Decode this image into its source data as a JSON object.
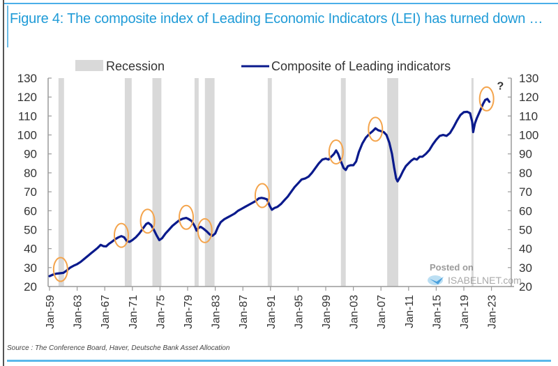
{
  "title": "Figure 4: The composite index of Leading Economic Indicators (LEI) has turned down …",
  "source": "Source : The Conference Board, Haver, Deutsche Bank Asset Allocation",
  "watermark": {
    "line1": "Posted on",
    "line2": "ISABELNET.com"
  },
  "chart_data": {
    "type": "line",
    "title": "Figure 4: The composite index of Leading Economic Indicators (LEI) has turned down …",
    "xlabel": "",
    "ylabel": "",
    "ylim": [
      20,
      130
    ],
    "xlim": [
      1959,
      2025.5
    ],
    "yticks": [
      20,
      30,
      40,
      50,
      60,
      70,
      80,
      90,
      100,
      110,
      120,
      130
    ],
    "xticks": [
      {
        "year": 1959,
        "label": "Jan-59"
      },
      {
        "year": 1963,
        "label": "Jan-63"
      },
      {
        "year": 1967,
        "label": "Jan-67"
      },
      {
        "year": 1971,
        "label": "Jan-71"
      },
      {
        "year": 1975,
        "label": "Jan-75"
      },
      {
        "year": 1979,
        "label": "Jan-79"
      },
      {
        "year": 1983,
        "label": "Jan-83"
      },
      {
        "year": 1987,
        "label": "Jan-87"
      },
      {
        "year": 1991,
        "label": "Jan-91"
      },
      {
        "year": 1995,
        "label": "Jan-95"
      },
      {
        "year": 1999,
        "label": "Jan-99"
      },
      {
        "year": 2003,
        "label": "Jan-03"
      },
      {
        "year": 2007,
        "label": "Jan-07"
      },
      {
        "year": 2011,
        "label": "Jan-11"
      },
      {
        "year": 2015,
        "label": "Jan-15"
      },
      {
        "year": 2019,
        "label": "Jan-19"
      },
      {
        "year": 2023,
        "label": "Jan-23"
      }
    ],
    "grid": false,
    "legend": {
      "position": "top",
      "entries": [
        {
          "name": "Recession",
          "type": "band",
          "color": "#d9d9d9"
        },
        {
          "name": "Composite of Leading indicators",
          "type": "line",
          "color": "#0a1a8c"
        }
      ]
    },
    "recessions": [
      [
        1960.3,
        1961.1
      ],
      [
        1969.9,
        1970.9
      ],
      [
        1973.9,
        1975.2
      ],
      [
        1980.0,
        1980.6
      ],
      [
        1981.5,
        1982.9
      ],
      [
        1990.6,
        1991.2
      ],
      [
        2001.2,
        2001.9
      ],
      [
        2007.9,
        2009.5
      ],
      [
        2020.1,
        2020.4
      ]
    ],
    "series": [
      {
        "name": "Composite of Leading indicators",
        "color": "#0a1a8c",
        "points": [
          [
            1959.0,
            25.5
          ],
          [
            1959.5,
            26.3
          ],
          [
            1960.0,
            26.8
          ],
          [
            1960.5,
            27.0
          ],
          [
            1961.0,
            27.2
          ],
          [
            1961.5,
            28.5
          ],
          [
            1962.0,
            30.0
          ],
          [
            1962.5,
            31.0
          ],
          [
            1963.0,
            31.8
          ],
          [
            1963.5,
            33.0
          ],
          [
            1964.0,
            34.5
          ],
          [
            1964.5,
            36.0
          ],
          [
            1965.0,
            37.5
          ],
          [
            1965.5,
            39.0
          ],
          [
            1966.0,
            40.5
          ],
          [
            1966.4,
            42.0
          ],
          [
            1966.8,
            41.3
          ],
          [
            1967.2,
            41.2
          ],
          [
            1967.6,
            42.5
          ],
          [
            1968.0,
            43.5
          ],
          [
            1968.5,
            45.0
          ],
          [
            1969.0,
            46.0
          ],
          [
            1969.4,
            46.6
          ],
          [
            1969.8,
            46.0
          ],
          [
            1970.2,
            44.0
          ],
          [
            1970.6,
            43.6
          ],
          [
            1971.0,
            44.5
          ],
          [
            1971.5,
            46.0
          ],
          [
            1972.0,
            48.0
          ],
          [
            1972.5,
            50.5
          ],
          [
            1973.0,
            53.0
          ],
          [
            1973.3,
            53.6
          ],
          [
            1973.7,
            52.5
          ],
          [
            1974.1,
            50.0
          ],
          [
            1974.5,
            47.0
          ],
          [
            1974.9,
            44.5
          ],
          [
            1975.3,
            45.5
          ],
          [
            1975.8,
            48.0
          ],
          [
            1976.3,
            50.0
          ],
          [
            1976.8,
            52.0
          ],
          [
            1977.3,
            53.5
          ],
          [
            1977.8,
            55.0
          ],
          [
            1978.3,
            55.8
          ],
          [
            1978.8,
            56.2
          ],
          [
            1979.2,
            55.5
          ],
          [
            1979.6,
            54.5
          ],
          [
            1980.0,
            52.0
          ],
          [
            1980.3,
            49.5
          ],
          [
            1980.6,
            51.0
          ],
          [
            1980.9,
            51.5
          ],
          [
            1981.3,
            50.5
          ],
          [
            1981.8,
            49.0
          ],
          [
            1982.2,
            47.5
          ],
          [
            1982.6,
            46.8
          ],
          [
            1983.0,
            48.0
          ],
          [
            1983.4,
            51.5
          ],
          [
            1983.8,
            54.0
          ],
          [
            1984.3,
            55.5
          ],
          [
            1984.8,
            56.5
          ],
          [
            1985.3,
            57.5
          ],
          [
            1985.8,
            58.5
          ],
          [
            1986.3,
            60.0
          ],
          [
            1986.8,
            61.0
          ],
          [
            1987.3,
            62.0
          ],
          [
            1987.8,
            63.0
          ],
          [
            1988.3,
            64.0
          ],
          [
            1988.8,
            65.0
          ],
          [
            1989.3,
            66.5
          ],
          [
            1989.7,
            66.8
          ],
          [
            1990.1,
            66.5
          ],
          [
            1990.5,
            66.0
          ],
          [
            1990.9,
            62.5
          ],
          [
            1991.2,
            60.5
          ],
          [
            1991.6,
            61.5
          ],
          [
            1992.0,
            62.0
          ],
          [
            1992.5,
            63.5
          ],
          [
            1993.0,
            65.5
          ],
          [
            1993.5,
            67.5
          ],
          [
            1994.0,
            70.0
          ],
          [
            1994.5,
            72.5
          ],
          [
            1995.0,
            74.5
          ],
          [
            1995.5,
            76.5
          ],
          [
            1996.0,
            77.0
          ],
          [
            1996.5,
            78.0
          ],
          [
            1997.0,
            80.0
          ],
          [
            1997.5,
            82.5
          ],
          [
            1998.0,
            85.0
          ],
          [
            1998.5,
            87.0
          ],
          [
            1999.0,
            87.5
          ],
          [
            1999.4,
            87.0
          ],
          [
            1999.8,
            88.5
          ],
          [
            2000.2,
            90.0
          ],
          [
            2000.5,
            91.8
          ],
          [
            2000.8,
            90.0
          ],
          [
            2001.2,
            86.0
          ],
          [
            2001.6,
            82.5
          ],
          [
            2001.9,
            81.5
          ],
          [
            2002.2,
            83.5
          ],
          [
            2002.6,
            84.0
          ],
          [
            2003.0,
            84.0
          ],
          [
            2003.4,
            86.0
          ],
          [
            2003.8,
            91.0
          ],
          [
            2004.3,
            95.5
          ],
          [
            2004.8,
            98.5
          ],
          [
            2005.3,
            100.5
          ],
          [
            2005.8,
            102.0
          ],
          [
            2006.2,
            103.5
          ],
          [
            2006.6,
            102.5
          ],
          [
            2007.0,
            102.0
          ],
          [
            2007.4,
            101.5
          ],
          [
            2007.8,
            100.0
          ],
          [
            2008.2,
            96.0
          ],
          [
            2008.6,
            90.0
          ],
          [
            2008.9,
            83.0
          ],
          [
            2009.2,
            77.0
          ],
          [
            2009.4,
            75.5
          ],
          [
            2009.8,
            78.0
          ],
          [
            2010.2,
            81.0
          ],
          [
            2010.6,
            83.5
          ],
          [
            2011.0,
            85.0
          ],
          [
            2011.4,
            86.5
          ],
          [
            2011.8,
            87.5
          ],
          [
            2012.2,
            87.0
          ],
          [
            2012.6,
            88.5
          ],
          [
            2013.0,
            88.5
          ],
          [
            2013.5,
            90.0
          ],
          [
            2014.0,
            92.0
          ],
          [
            2014.5,
            95.0
          ],
          [
            2015.0,
            97.5
          ],
          [
            2015.5,
            99.5
          ],
          [
            2016.0,
            100.0
          ],
          [
            2016.5,
            99.5
          ],
          [
            2017.0,
            101.0
          ],
          [
            2017.5,
            104.0
          ],
          [
            2018.0,
            107.5
          ],
          [
            2018.5,
            110.5
          ],
          [
            2019.0,
            112.0
          ],
          [
            2019.5,
            112.2
          ],
          [
            2019.9,
            111.5
          ],
          [
            2020.2,
            107.0
          ],
          [
            2020.35,
            101.5
          ],
          [
            2020.6,
            106.0
          ],
          [
            2020.9,
            109.0
          ],
          [
            2021.2,
            111.5
          ],
          [
            2021.5,
            114.0
          ],
          [
            2021.8,
            116.5
          ],
          [
            2022.1,
            118.5
          ],
          [
            2022.4,
            119.0
          ],
          [
            2022.7,
            117.5
          ]
        ]
      }
    ],
    "annotations": [
      {
        "type": "ellipse",
        "x": 1960.6,
        "y": 29,
        "color": "#f4a44c"
      },
      {
        "type": "ellipse",
        "x": 1969.4,
        "y": 47,
        "color": "#f4a44c"
      },
      {
        "type": "ellipse",
        "x": 1973.2,
        "y": 54.5,
        "color": "#f4a44c"
      },
      {
        "type": "ellipse",
        "x": 1978.8,
        "y": 56.5,
        "color": "#f4a44c"
      },
      {
        "type": "ellipse",
        "x": 1981.5,
        "y": 49.5,
        "color": "#f4a44c"
      },
      {
        "type": "ellipse",
        "x": 1989.8,
        "y": 68.0,
        "color": "#f4a44c"
      },
      {
        "type": "ellipse",
        "x": 2000.5,
        "y": 91.0,
        "color": "#f4a44c"
      },
      {
        "type": "ellipse",
        "x": 2006.2,
        "y": 103.0,
        "color": "#f4a44c"
      },
      {
        "type": "ellipse",
        "x": 2022.3,
        "y": 119.0,
        "color": "#f4a44c"
      },
      {
        "type": "text",
        "x": 2024.0,
        "y": 124.0,
        "text": "?"
      }
    ]
  }
}
